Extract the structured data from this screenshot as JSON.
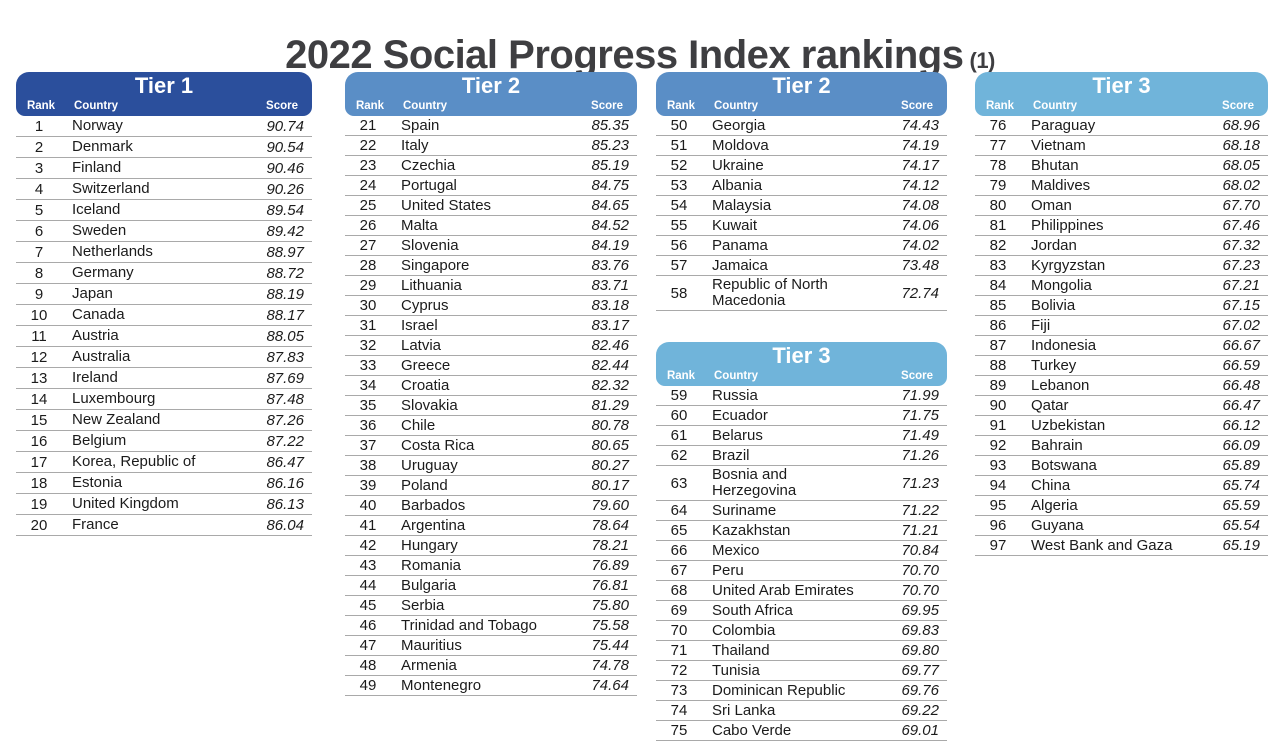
{
  "title": {
    "main": "2022 Social Progress Index rankings",
    "suffix": "(1)"
  },
  "labels": {
    "rank": "Rank",
    "country": "Country",
    "score": "Score"
  },
  "colors": {
    "tier1": "#2b4f9c",
    "tier2": "#5a8ec6",
    "tier3": "#70b4da",
    "title_text": "#3e3e41",
    "row_text": "#1b1b1b",
    "separator": "#a9a9a9"
  },
  "chart_data": {
    "type": "table",
    "title": "2022 Social Progress Index rankings",
    "title_suffix": "(1)",
    "columns": [
      "Rank",
      "Country",
      "Score"
    ],
    "tables": [
      {
        "tier": "Tier 1",
        "color": "tier1",
        "rows": [
          [
            "1",
            "Norway",
            "90.74"
          ],
          [
            "2",
            "Denmark",
            "90.54"
          ],
          [
            "3",
            "Finland",
            "90.46"
          ],
          [
            "4",
            "Switzerland",
            "90.26"
          ],
          [
            "5",
            "Iceland",
            "89.54"
          ],
          [
            "6",
            "Sweden",
            "89.42"
          ],
          [
            "7",
            "Netherlands",
            "88.97"
          ],
          [
            "8",
            "Germany",
            "88.72"
          ],
          [
            "9",
            "Japan",
            "88.19"
          ],
          [
            "10",
            "Canada",
            "88.17"
          ],
          [
            "11",
            "Austria",
            "88.05"
          ],
          [
            "12",
            "Australia",
            "87.83"
          ],
          [
            "13",
            "Ireland",
            "87.69"
          ],
          [
            "14",
            "Luxembourg",
            "87.48"
          ],
          [
            "15",
            "New Zealand",
            "87.26"
          ],
          [
            "16",
            "Belgium",
            "87.22"
          ],
          [
            "17",
            "Korea, Republic of",
            "86.47"
          ],
          [
            "18",
            "Estonia",
            "86.16"
          ],
          [
            "19",
            "United Kingdom",
            "86.13"
          ],
          [
            "20",
            "France",
            "86.04"
          ]
        ]
      },
      {
        "tier": "Tier 2",
        "color": "tier2",
        "rows": [
          [
            "21",
            "Spain",
            "85.35"
          ],
          [
            "22",
            "Italy",
            "85.23"
          ],
          [
            "23",
            "Czechia",
            "85.19"
          ],
          [
            "24",
            "Portugal",
            "84.75"
          ],
          [
            "25",
            "United States",
            "84.65"
          ],
          [
            "26",
            "Malta",
            "84.52"
          ],
          [
            "27",
            "Slovenia",
            "84.19"
          ],
          [
            "28",
            "Singapore",
            "83.76"
          ],
          [
            "29",
            "Lithuania",
            "83.71"
          ],
          [
            "30",
            "Cyprus",
            "83.18"
          ],
          [
            "31",
            "Israel",
            "83.17"
          ],
          [
            "32",
            "Latvia",
            "82.46"
          ],
          [
            "33",
            "Greece",
            "82.44"
          ],
          [
            "34",
            "Croatia",
            "82.32"
          ],
          [
            "35",
            "Slovakia",
            "81.29"
          ],
          [
            "36",
            "Chile",
            "80.78"
          ],
          [
            "37",
            "Costa Rica",
            "80.65"
          ],
          [
            "38",
            "Uruguay",
            "80.27"
          ],
          [
            "39",
            "Poland",
            "80.17"
          ],
          [
            "40",
            "Barbados",
            "79.60"
          ],
          [
            "41",
            "Argentina",
            "78.64"
          ],
          [
            "42",
            "Hungary",
            "78.21"
          ],
          [
            "43",
            "Romania",
            "76.89"
          ],
          [
            "44",
            "Bulgaria",
            "76.81"
          ],
          [
            "45",
            "Serbia",
            "75.80"
          ],
          [
            "46",
            "Trinidad and Tobago",
            "75.58"
          ],
          [
            "47",
            "Mauritius",
            "75.44"
          ],
          [
            "48",
            "Armenia",
            "74.78"
          ],
          [
            "49",
            "Montenegro",
            "74.64"
          ]
        ]
      },
      {
        "tier": "Tier 2",
        "color": "tier2",
        "rows": [
          [
            "50",
            "Georgia",
            "74.43"
          ],
          [
            "51",
            "Moldova",
            "74.19"
          ],
          [
            "52",
            "Ukraine",
            "74.17"
          ],
          [
            "53",
            "Albania",
            "74.12"
          ],
          [
            "54",
            "Malaysia",
            "74.08"
          ],
          [
            "55",
            "Kuwait",
            "74.06"
          ],
          [
            "56",
            "Panama",
            "74.02"
          ],
          [
            "57",
            "Jamaica",
            "73.48"
          ],
          [
            "58",
            "Republic of North Macedonia",
            "72.74"
          ]
        ]
      },
      {
        "tier": "Tier 3",
        "color": "tier3",
        "rows": [
          [
            "59",
            "Russia",
            "71.99"
          ],
          [
            "60",
            "Ecuador",
            "71.75"
          ],
          [
            "61",
            "Belarus",
            "71.49"
          ],
          [
            "62",
            "Brazil",
            "71.26"
          ],
          [
            "63",
            "Bosnia and Herzegovina",
            "71.23"
          ],
          [
            "64",
            "Suriname",
            "71.22"
          ],
          [
            "65",
            "Kazakhstan",
            "71.21"
          ],
          [
            "66",
            "Mexico",
            "70.84"
          ],
          [
            "67",
            "Peru",
            "70.70"
          ],
          [
            "68",
            "United Arab Emirates",
            "70.70"
          ],
          [
            "69",
            "South Africa",
            "69.95"
          ],
          [
            "70",
            "Colombia",
            "69.83"
          ],
          [
            "71",
            "Thailand",
            "69.80"
          ],
          [
            "72",
            "Tunisia",
            "69.77"
          ],
          [
            "73",
            "Dominican Republic",
            "69.76"
          ],
          [
            "74",
            "Sri Lanka",
            "69.22"
          ],
          [
            "75",
            "Cabo Verde",
            "69.01"
          ]
        ]
      },
      {
        "tier": "Tier 3",
        "color": "tier3",
        "rows": [
          [
            "76",
            "Paraguay",
            "68.96"
          ],
          [
            "77",
            "Vietnam",
            "68.18"
          ],
          [
            "78",
            "Bhutan",
            "68.05"
          ],
          [
            "79",
            "Maldives",
            "68.02"
          ],
          [
            "80",
            "Oman",
            "67.70"
          ],
          [
            "81",
            "Philippines",
            "67.46"
          ],
          [
            "82",
            "Jordan",
            "67.32"
          ],
          [
            "83",
            "Kyrgyzstan",
            "67.23"
          ],
          [
            "84",
            "Mongolia",
            "67.21"
          ],
          [
            "85",
            "Bolivia",
            "67.15"
          ],
          [
            "86",
            "Fiji",
            "67.02"
          ],
          [
            "87",
            "Indonesia",
            "66.67"
          ],
          [
            "88",
            "Turkey",
            "66.59"
          ],
          [
            "89",
            "Lebanon",
            "66.48"
          ],
          [
            "90",
            "Qatar",
            "66.47"
          ],
          [
            "91",
            "Uzbekistan",
            "66.12"
          ],
          [
            "92",
            "Bahrain",
            "66.09"
          ],
          [
            "93",
            "Botswana",
            "65.89"
          ],
          [
            "94",
            "China",
            "65.74"
          ],
          [
            "95",
            "Algeria",
            "65.59"
          ],
          [
            "96",
            "Guyana",
            "65.54"
          ],
          [
            "97",
            "West Bank and Gaza",
            "65.19"
          ]
        ]
      }
    ]
  }
}
